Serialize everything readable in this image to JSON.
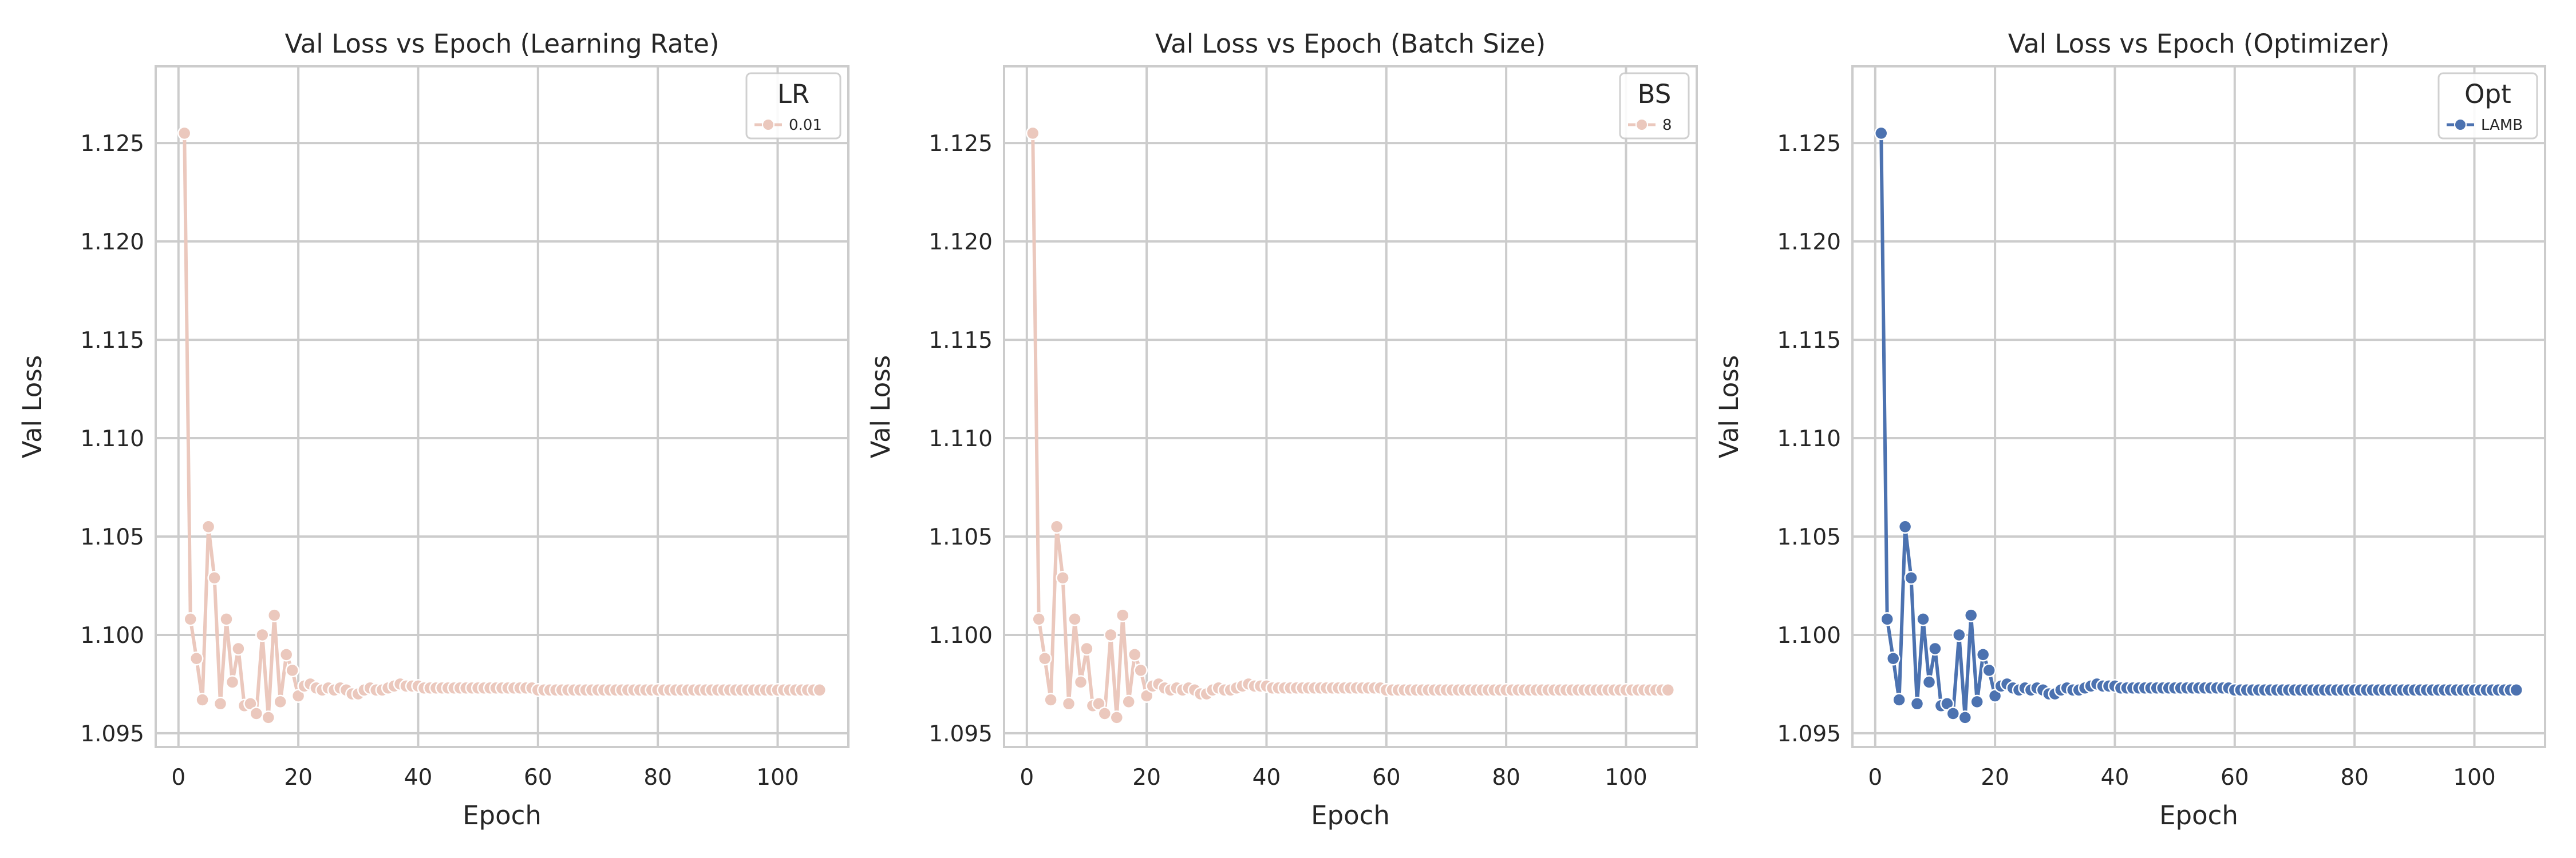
{
  "chart_data": [
    {
      "type": "line",
      "title": "Val Loss vs Epoch (Learning Rate)",
      "xlabel": "Epoch",
      "ylabel": "Val Loss",
      "xlim": [
        -3.8,
        111.8
      ],
      "ylim": [
        1.0943,
        1.1289
      ],
      "xticks": [
        0,
        20,
        40,
        60,
        80,
        100
      ],
      "yticks": [
        1.095,
        1.1,
        1.105,
        1.11,
        1.115,
        1.12,
        1.125
      ],
      "yticks_format": 3,
      "grid": true,
      "legend": {
        "title": "LR",
        "position": "top-right",
        "entries": [
          {
            "label": "0.01",
            "color": "#ebc8bd"
          }
        ]
      },
      "series": [
        {
          "name": "0.01",
          "color": "#ebc8bd",
          "alpha": 1.0,
          "x_start": 1,
          "values": [
            1.1255,
            1.1008,
            1.0988,
            1.0967,
            1.1055,
            1.1029,
            1.0965,
            1.1008,
            1.0976,
            1.0993,
            1.0964,
            1.0965,
            1.096,
            1.1,
            1.0958,
            1.101,
            1.0966,
            1.099,
            1.0982,
            1.0969,
            1.0974,
            1.0975,
            1.0973,
            1.0972,
            1.0973,
            1.0972,
            1.0973,
            1.0972,
            1.097,
            1.097,
            1.0972,
            1.0973,
            1.0972,
            1.0972,
            1.0973,
            1.0974,
            1.0975,
            1.0974,
            1.0974,
            1.0974,
            1.0973,
            1.0973,
            1.0973,
            1.0973,
            1.0973,
            1.0973,
            1.0973,
            1.0973,
            1.0973,
            1.0973,
            1.0973,
            1.0973,
            1.0973,
            1.0973,
            1.0973,
            1.0973,
            1.0973,
            1.0973,
            1.0973,
            1.0972,
            1.0972,
            1.0972,
            1.0972,
            1.0972,
            1.0972,
            1.0972,
            1.0972,
            1.0972,
            1.0972,
            1.0972,
            1.0972,
            1.0972,
            1.0972,
            1.0972,
            1.0972,
            1.0972,
            1.0972,
            1.0972,
            1.0972,
            1.0972,
            1.0972,
            1.0972,
            1.0972,
            1.0972,
            1.0972,
            1.0972,
            1.0972,
            1.0972,
            1.0972,
            1.0972,
            1.0972,
            1.0972,
            1.0972,
            1.0972,
            1.0972,
            1.0972,
            1.0972,
            1.0972,
            1.0972,
            1.0972,
            1.0972,
            1.0972,
            1.0972,
            1.0972,
            1.0972,
            1.0972,
            1.0972
          ]
        }
      ]
    },
    {
      "type": "line",
      "title": "Val Loss vs Epoch (Batch Size)",
      "xlabel": "Epoch",
      "ylabel": "Val Loss",
      "xlim": [
        -3.8,
        111.8
      ],
      "ylim": [
        1.0943,
        1.1289
      ],
      "xticks": [
        0,
        20,
        40,
        60,
        80,
        100
      ],
      "yticks": [
        1.095,
        1.1,
        1.105,
        1.11,
        1.115,
        1.12,
        1.125
      ],
      "yticks_format": 3,
      "grid": true,
      "legend": {
        "title": "BS",
        "position": "top-right",
        "entries": [
          {
            "label": "8",
            "color": "#ebc8bd"
          }
        ]
      },
      "series": [
        {
          "name": "8",
          "color": "#ebc8bd",
          "alpha": 1.0,
          "x_start": 1,
          "values": [
            1.1255,
            1.1008,
            1.0988,
            1.0967,
            1.1055,
            1.1029,
            1.0965,
            1.1008,
            1.0976,
            1.0993,
            1.0964,
            1.0965,
            1.096,
            1.1,
            1.0958,
            1.101,
            1.0966,
            1.099,
            1.0982,
            1.0969,
            1.0974,
            1.0975,
            1.0973,
            1.0972,
            1.0973,
            1.0972,
            1.0973,
            1.0972,
            1.097,
            1.097,
            1.0972,
            1.0973,
            1.0972,
            1.0972,
            1.0973,
            1.0974,
            1.0975,
            1.0974,
            1.0974,
            1.0974,
            1.0973,
            1.0973,
            1.0973,
            1.0973,
            1.0973,
            1.0973,
            1.0973,
            1.0973,
            1.0973,
            1.0973,
            1.0973,
            1.0973,
            1.0973,
            1.0973,
            1.0973,
            1.0973,
            1.0973,
            1.0973,
            1.0973,
            1.0972,
            1.0972,
            1.0972,
            1.0972,
            1.0972,
            1.0972,
            1.0972,
            1.0972,
            1.0972,
            1.0972,
            1.0972,
            1.0972,
            1.0972,
            1.0972,
            1.0972,
            1.0972,
            1.0972,
            1.0972,
            1.0972,
            1.0972,
            1.0972,
            1.0972,
            1.0972,
            1.0972,
            1.0972,
            1.0972,
            1.0972,
            1.0972,
            1.0972,
            1.0972,
            1.0972,
            1.0972,
            1.0972,
            1.0972,
            1.0972,
            1.0972,
            1.0972,
            1.0972,
            1.0972,
            1.0972,
            1.0972,
            1.0972,
            1.0972,
            1.0972,
            1.0972,
            1.0972,
            1.0972,
            1.0972
          ]
        }
      ]
    },
    {
      "type": "line",
      "title": "Val Loss vs Epoch (Optimizer)",
      "xlabel": "Epoch",
      "ylabel": "Val Loss",
      "xlim": [
        -3.8,
        111.8
      ],
      "ylim": [
        1.0943,
        1.1289
      ],
      "xticks": [
        0,
        20,
        40,
        60,
        80,
        100
      ],
      "yticks": [
        1.095,
        1.1,
        1.105,
        1.11,
        1.115,
        1.12,
        1.125
      ],
      "yticks_format": 3,
      "grid": true,
      "legend": {
        "title": "Opt",
        "position": "top-right",
        "entries": [
          {
            "label": "LAMB",
            "color": "#4c72b0"
          }
        ]
      },
      "series": [
        {
          "name": "LAMB",
          "color": "#4c72b0",
          "alpha": 1.0,
          "x_start": 1,
          "values": [
            1.1255,
            1.1008,
            1.0988,
            1.0967,
            1.1055,
            1.1029,
            1.0965,
            1.1008,
            1.0976,
            1.0993,
            1.0964,
            1.0965,
            1.096,
            1.1,
            1.0958,
            1.101,
            1.0966,
            1.099,
            1.0982,
            1.0969,
            1.0974,
            1.0975,
            1.0973,
            1.0972,
            1.0973,
            1.0972,
            1.0973,
            1.0972,
            1.097,
            1.097,
            1.0972,
            1.0973,
            1.0972,
            1.0972,
            1.0973,
            1.0974,
            1.0975,
            1.0974,
            1.0974,
            1.0974,
            1.0973,
            1.0973,
            1.0973,
            1.0973,
            1.0973,
            1.0973,
            1.0973,
            1.0973,
            1.0973,
            1.0973,
            1.0973,
            1.0973,
            1.0973,
            1.0973,
            1.0973,
            1.0973,
            1.0973,
            1.0973,
            1.0973,
            1.0972,
            1.0972,
            1.0972,
            1.0972,
            1.0972,
            1.0972,
            1.0972,
            1.0972,
            1.0972,
            1.0972,
            1.0972,
            1.0972,
            1.0972,
            1.0972,
            1.0972,
            1.0972,
            1.0972,
            1.0972,
            1.0972,
            1.0972,
            1.0972,
            1.0972,
            1.0972,
            1.0972,
            1.0972,
            1.0972,
            1.0972,
            1.0972,
            1.0972,
            1.0972,
            1.0972,
            1.0972,
            1.0972,
            1.0972,
            1.0972,
            1.0972,
            1.0972,
            1.0972,
            1.0972,
            1.0972,
            1.0972,
            1.0972,
            1.0972,
            1.0972,
            1.0972,
            1.0972,
            1.0972,
            1.0972
          ]
        }
      ]
    }
  ],
  "colors": {
    "grid": "#cccccc",
    "spine": "#cccccc",
    "background": "#ffffff",
    "text": "#262626"
  }
}
